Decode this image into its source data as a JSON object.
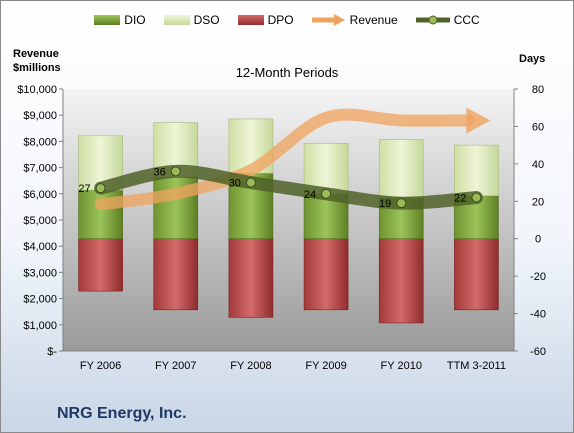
{
  "chart_data": {
    "type": "bar",
    "subtitle": "12-Month Periods",
    "company": "NRG Energy, Inc.",
    "left_axis": {
      "title_line1": "Revenue",
      "title_line2": "$millions",
      "ylim": [
        0,
        10000
      ],
      "ticks": [
        0,
        1000,
        2000,
        3000,
        4000,
        5000,
        6000,
        7000,
        8000,
        9000,
        10000
      ],
      "tick_labels": [
        "$-",
        "$1,000",
        "$2,000",
        "$3,000",
        "$4,000",
        "$5,000",
        "$6,000",
        "$7,000",
        "$8,000",
        "$9,000",
        "$10,000"
      ]
    },
    "right_axis": {
      "title": "Days",
      "ylim": [
        -60,
        80
      ],
      "ticks": [
        -60,
        -40,
        -20,
        0,
        20,
        40,
        60,
        80
      ],
      "tick_labels": [
        "-60",
        "-40",
        "-20",
        "0",
        "20",
        "40",
        "60",
        "80"
      ]
    },
    "categories": [
      "FY 2006",
      "FY 2007",
      "FY 2008",
      "FY 2009",
      "FY 2010",
      "TTM 3-2011"
    ],
    "series": [
      {
        "name": "DIO",
        "axis": "right",
        "values": [
          26,
          33,
          35,
          24,
          22,
          23
        ],
        "color": "#7fa33a"
      },
      {
        "name": "DSO",
        "axis": "right",
        "values": [
          29,
          29,
          29,
          27,
          31,
          27
        ],
        "color": "#d7e4b1"
      },
      {
        "name": "DPO",
        "axis": "right",
        "values": [
          28,
          38,
          42,
          38,
          45,
          38
        ],
        "color": "#b84646"
      },
      {
        "name": "Revenue",
        "axis": "left",
        "values": [
          5600,
          6000,
          6900,
          8900,
          8800,
          8800
        ],
        "color": "#f0a35e"
      },
      {
        "name": "CCC",
        "axis": "right",
        "values": [
          27,
          36,
          30,
          24,
          19,
          22
        ],
        "color": "#4f6228"
      }
    ],
    "ccc_labels": [
      "27",
      "36",
      "30",
      "24",
      "19",
      "22"
    ],
    "legend_position": "top",
    "grid": false
  }
}
